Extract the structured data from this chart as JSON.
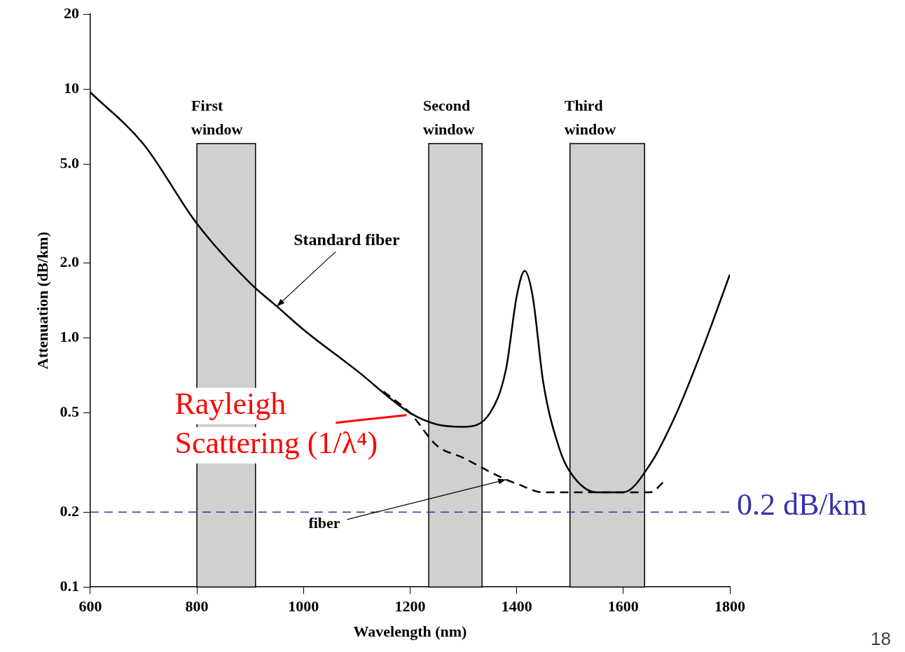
{
  "chart_data": {
    "type": "line",
    "xlabel": "Wavelength (nm)",
    "ylabel": "Attenuation (dB/km)",
    "log": "y",
    "grid": false,
    "legend": false,
    "marker": "none",
    "xlim": [
      600,
      1800
    ],
    "xticks": [
      600,
      800,
      1000,
      1200,
      1400,
      1600,
      1800
    ],
    "ylim": [
      0.1,
      20
    ],
    "yticks": [
      {
        "value": 0.1,
        "label": "0.1"
      },
      {
        "value": 0.2,
        "label": "0.2"
      },
      {
        "value": 0.5,
        "label": "0.5"
      },
      {
        "value": 1,
        "label": "1.0"
      },
      {
        "value": 2,
        "label": "2.0"
      },
      {
        "value": 5,
        "label": "5.0"
      },
      {
        "value": 10,
        "label": "10"
      },
      {
        "value": 20,
        "label": "20"
      }
    ],
    "series": [
      {
        "color": "#000000",
        "line_style": "solid",
        "x": [
          600,
          700,
          800,
          900,
          950,
          1000,
          1100,
          1200,
          1250,
          1300,
          1350,
          1380,
          1400,
          1415,
          1430,
          1450,
          1480,
          1500,
          1550,
          1600,
          1650,
          1700,
          1750,
          1800
        ],
        "values": [
          9.7,
          6.0,
          2.88,
          1.66,
          1.34,
          1.08,
          0.74,
          0.5,
          0.45,
          0.44,
          0.5,
          0.75,
          1.47,
          1.86,
          1.47,
          0.66,
          0.36,
          0.29,
          0.24,
          0.24,
          0.31,
          0.5,
          0.92,
          1.8
        ]
      },
      {
        "color": "#000000",
        "line_style": "dashed",
        "x": [
          1150,
          1200,
          1250,
          1300,
          1350,
          1380,
          1400,
          1450,
          1500,
          1550,
          1600,
          1650,
          1680
        ],
        "values": [
          0.61,
          0.5,
          0.37,
          0.33,
          0.29,
          0.27,
          0.26,
          0.24,
          0.24,
          0.24,
          0.24,
          0.24,
          0.27
        ]
      }
    ],
    "bands": [
      {
        "axis": "x",
        "from": 800,
        "to": 910,
        "label": "First window",
        "color": "#d0d0d0"
      },
      {
        "axis": "x",
        "from": 1235,
        "to": 1335,
        "label": "Second window",
        "color": "#d0d0d0"
      },
      {
        "axis": "x",
        "from": 1500,
        "to": 1640,
        "label": "Third window",
        "color": "#d0d0d0"
      }
    ],
    "ref_lines": [
      {
        "axis": "y",
        "value": 0.2,
        "label": "0.2 dB/km",
        "color": "#3333aa",
        "line_style": "dashed"
      }
    ],
    "annotations": [
      {
        "text": "Standard fiber",
        "x": 950,
        "y": 1.34
      },
      {
        "text": "Rayleigh Scattering (1/λ⁴)",
        "x": 1200,
        "y": 0.5
      },
      {
        "text": "fiber",
        "x": 1380,
        "y": 0.27
      },
      "18"
    ]
  }
}
